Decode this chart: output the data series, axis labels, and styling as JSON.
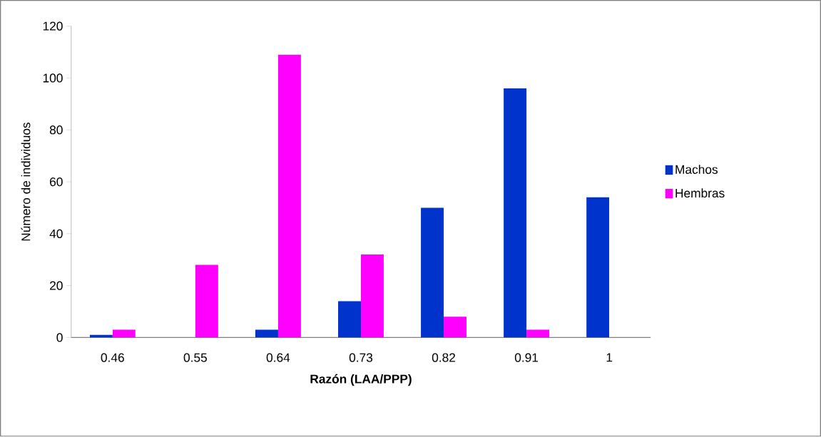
{
  "chart_data": {
    "type": "bar",
    "xlabel": "Razón (LAA/PPP)",
    "ylabel": "Número de individuos",
    "categories": [
      "0.46",
      "0.55",
      "0.64",
      "0.73",
      "0.82",
      "0.91",
      "1"
    ],
    "series": [
      {
        "name": "Machos",
        "color": "#0033cc",
        "values": [
          1,
          0,
          3,
          14,
          50,
          96,
          54
        ]
      },
      {
        "name": "Hembras",
        "color": "#ff00ff",
        "values": [
          3,
          28,
          109,
          32,
          8,
          3,
          0
        ]
      }
    ],
    "ylim": [
      0,
      120
    ],
    "yticks": [
      0,
      20,
      40,
      60,
      80,
      100,
      120
    ],
    "grid": false,
    "legend": "right"
  }
}
